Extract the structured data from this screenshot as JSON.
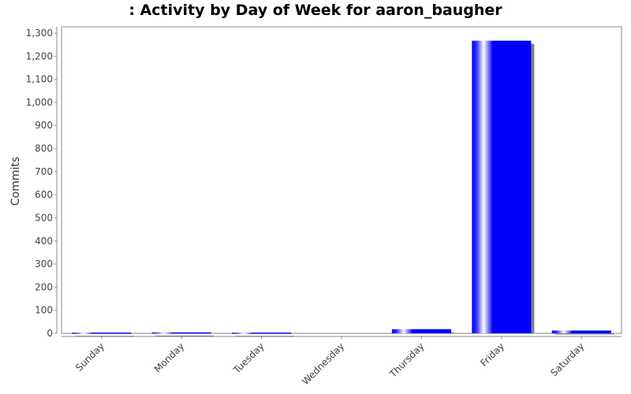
{
  "chart_data": {
    "type": "bar",
    "title": ": Activity by Day of Week for aaron_baugher",
    "xlabel": "",
    "ylabel": "Commits",
    "categories": [
      "Sunday",
      "Monday",
      "Tuesday",
      "Wednesday",
      "Thursday",
      "Friday",
      "Saturday"
    ],
    "values": [
      3,
      4,
      3,
      0,
      18,
      1267,
      12
    ],
    "ylim": [
      0,
      1300
    ],
    "yticks": [
      0,
      100,
      200,
      300,
      400,
      500,
      600,
      700,
      800,
      900,
      1000,
      1100,
      1200,
      1300
    ],
    "ytick_labels": [
      "0",
      "100",
      "200",
      "300",
      "400",
      "500",
      "600",
      "700",
      "800",
      "900",
      "1,000",
      "1,100",
      "1,200",
      "1,300"
    ],
    "grid": false,
    "legend": "none",
    "colors": {
      "bar": "#0000ff",
      "bar_highlight": "#ffffff",
      "shadow": "#808080",
      "axis": "#888888"
    }
  }
}
